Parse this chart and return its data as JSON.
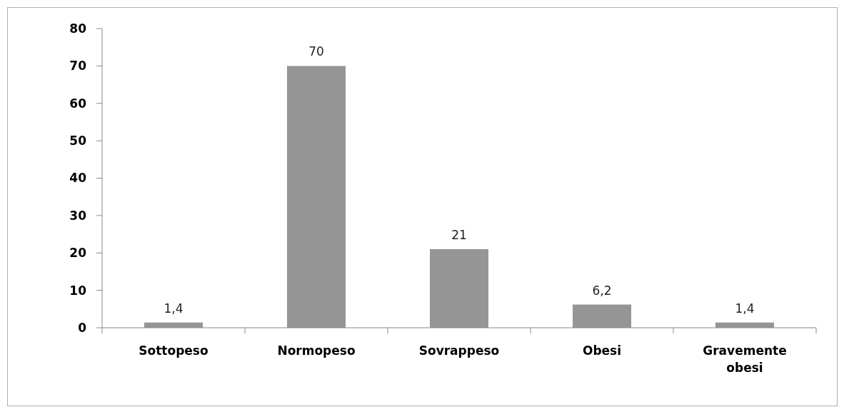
{
  "chart_data": {
    "type": "bar",
    "categories": [
      "Sottopeso",
      "Normopeso",
      "Sovrappeso",
      "Obesi",
      "Gravemente obesi"
    ],
    "values": [
      1.4,
      70,
      21,
      6.2,
      1.4
    ],
    "value_labels": [
      "1,4",
      "70",
      "21",
      "6,2",
      "1,4"
    ],
    "color": "#959595",
    "ylim": [
      0,
      80
    ],
    "yticks": [
      0,
      10,
      20,
      30,
      40,
      50,
      60,
      70,
      80
    ],
    "grid": false
  }
}
